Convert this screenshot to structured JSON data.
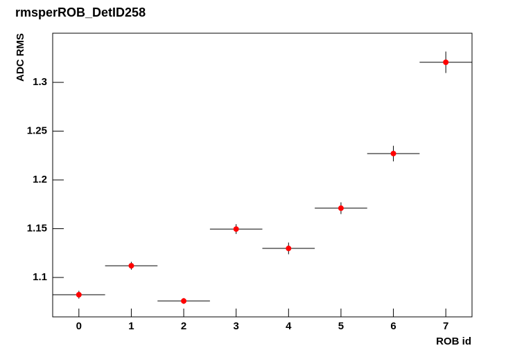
{
  "chart_data": {
    "type": "errorbar",
    "title": "rmsperROB_DetID258",
    "x_label": "ROB id",
    "y_label": "ADC RMS",
    "x": [
      0,
      1,
      2,
      3,
      4,
      5,
      6,
      7
    ],
    "values": [
      1.0823,
      1.112,
      1.0759,
      1.1496,
      1.1298,
      1.171,
      1.227,
      1.3206
    ],
    "errors": [
      0.004,
      0.004,
      0.003,
      0.005,
      0.006,
      0.006,
      0.008,
      0.011
    ],
    "xerr": 0.5,
    "color": "#ff0000",
    "xlim": [
      -0.5,
      7.5
    ],
    "xticks": [
      0,
      1,
      2,
      3,
      4,
      5,
      6,
      7
    ],
    "ylim": [
      1.0596,
      1.3504
    ],
    "yticks": [
      1.1,
      1.15,
      1.2,
      1.25,
      1.3
    ]
  }
}
